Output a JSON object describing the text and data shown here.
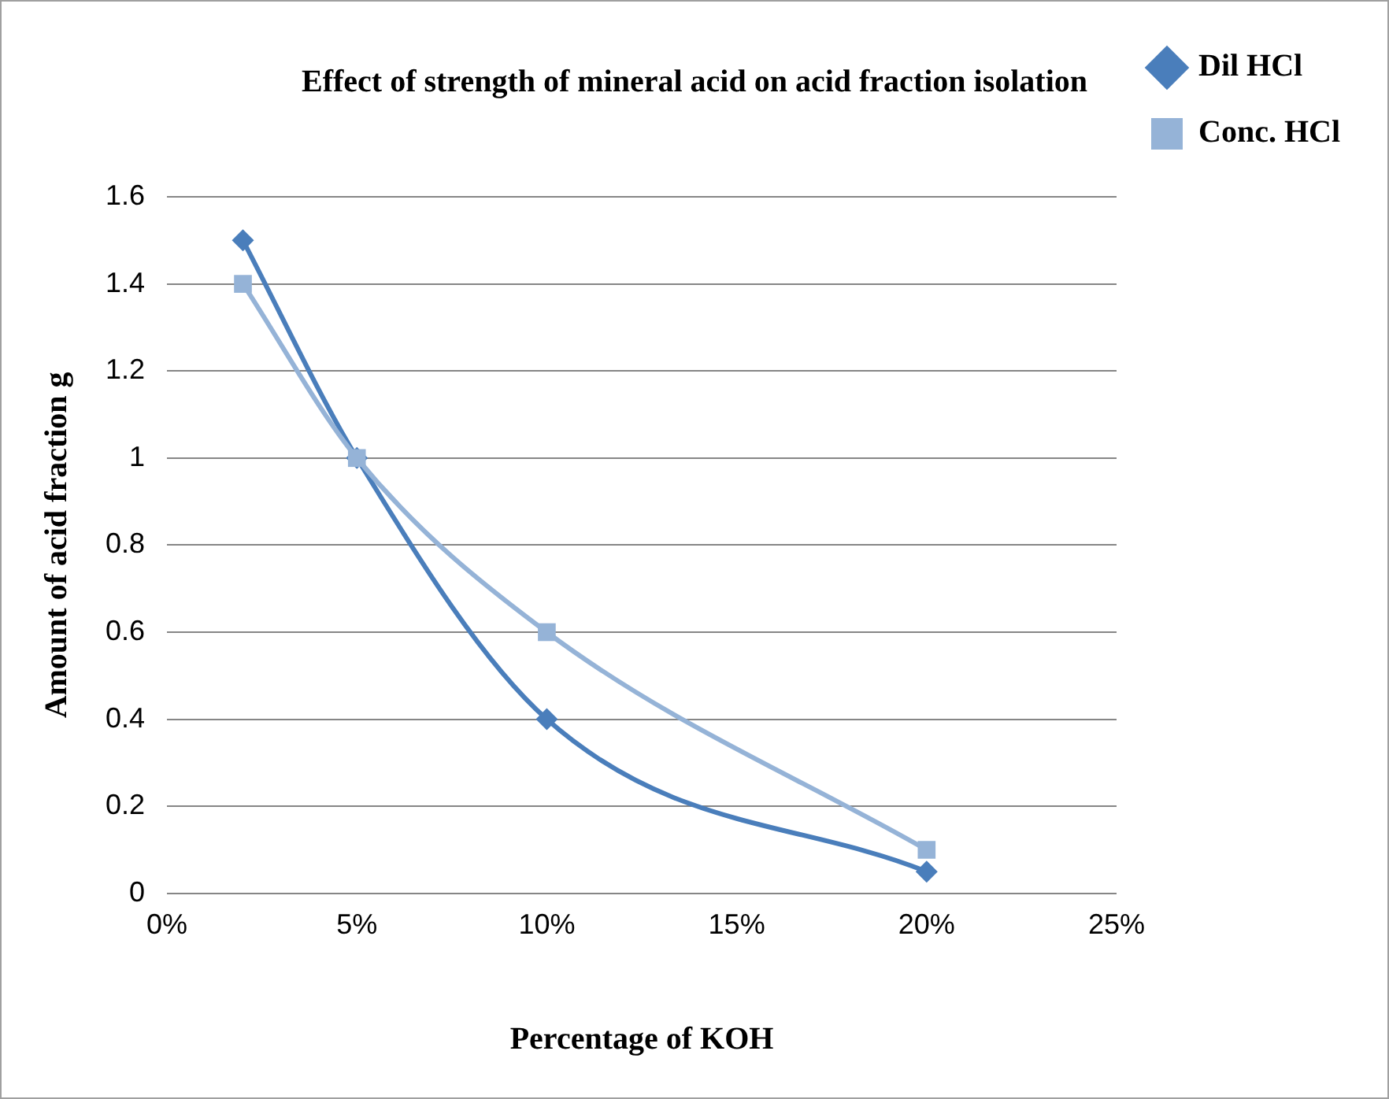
{
  "chart_data": {
    "type": "line",
    "title": "Effect of strength of mineral acid on acid fraction isolation",
    "xlabel": "Percentage of KOH",
    "ylabel": "Amount of acid fraction g",
    "x": [
      2,
      5,
      10,
      20
    ],
    "series": [
      {
        "name": "Dil HCl",
        "color": "#4a7ebb",
        "values": [
          1.5,
          1.0,
          0.4,
          0.05
        ],
        "marker": "diamond"
      },
      {
        "name": "Conc. HCl",
        "color": "#95b3d7",
        "values": [
          1.4,
          1.0,
          0.6,
          0.1
        ],
        "marker": "square"
      }
    ],
    "xlim": [
      0,
      25
    ],
    "xticks": [
      {
        "value": 0,
        "label": "0%"
      },
      {
        "value": 5,
        "label": "5%"
      },
      {
        "value": 10,
        "label": "10%"
      },
      {
        "value": 15,
        "label": "15%"
      },
      {
        "value": 20,
        "label": "20%"
      },
      {
        "value": 25,
        "label": "25%"
      }
    ],
    "ylim": [
      0,
      1.6
    ],
    "yticks": [
      0,
      0.2,
      0.4,
      0.6,
      0.8,
      1,
      1.2,
      1.4,
      1.6
    ],
    "grid": "y",
    "legend": "right",
    "line_style": "solid"
  }
}
